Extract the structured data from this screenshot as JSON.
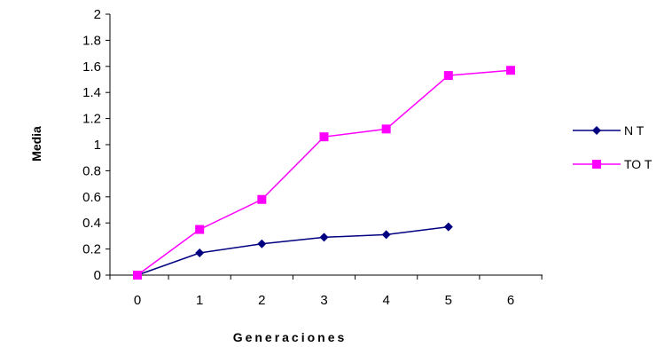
{
  "chart_data": {
    "type": "line",
    "title": "",
    "xlabel": "Generaciones",
    "ylabel": "Media",
    "x": [
      0,
      1,
      2,
      3,
      4,
      5,
      6
    ],
    "xlim": [
      0,
      6
    ],
    "ylim": [
      0,
      2
    ],
    "yticks": [
      "0",
      "0.2",
      "0.4",
      "0.6",
      "0.8",
      "1",
      "1.2",
      "1.4",
      "1.6",
      "1.8",
      "2"
    ],
    "xticks": [
      "0",
      "1",
      "2",
      "3",
      "4",
      "5",
      "6"
    ],
    "grid": false,
    "legend_position": "right",
    "series": [
      {
        "name": "N T",
        "color": "#000080",
        "marker": "diamond",
        "x": [
          0,
          1,
          2,
          3,
          4,
          5
        ],
        "values": [
          0,
          0.17,
          0.24,
          0.29,
          0.31,
          0.37
        ]
      },
      {
        "name": "TO T",
        "color": "#ff00ff",
        "marker": "square",
        "x": [
          0,
          1,
          2,
          3,
          4,
          5,
          6
        ],
        "values": [
          0,
          0.35,
          0.58,
          1.06,
          1.12,
          1.53,
          1.57
        ]
      }
    ]
  }
}
